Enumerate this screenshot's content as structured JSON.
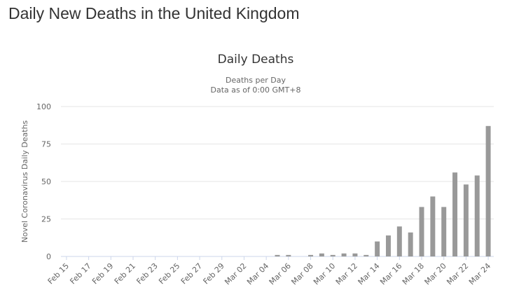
{
  "header": {
    "title": "Daily New Deaths in the United Kingdom"
  },
  "chart_data": {
    "type": "bar",
    "title": "Daily Deaths",
    "subtitle": [
      "Deaths per Day",
      "Data as of 0:00 GMT+8"
    ],
    "y_label": "Novel Coronavirus Daily Deaths",
    "categories": [
      "Feb 15",
      null,
      "Feb 17",
      null,
      "Feb 19",
      null,
      "Feb 21",
      null,
      "Feb 23",
      null,
      "Feb 25",
      null,
      "Feb 27",
      null,
      "Feb 29",
      null,
      "Mar 02",
      null,
      "Mar 04",
      null,
      "Mar 06",
      null,
      "Mar 08",
      null,
      "Mar 10",
      null,
      "Mar 12",
      null,
      "Mar 14",
      null,
      "Mar 16",
      null,
      "Mar 18",
      null,
      "Mar 20",
      null,
      "Mar 22",
      null,
      "Mar 24"
    ],
    "values": [
      0,
      0,
      0,
      0,
      0,
      0,
      0,
      0,
      0,
      0,
      0,
      0,
      0,
      0,
      0,
      0,
      0,
      0,
      0,
      1,
      1,
      0,
      1,
      2,
      1,
      2,
      2,
      1,
      10,
      14,
      20,
      16,
      33,
      40,
      33,
      56,
      48,
      54,
      87
    ],
    "color": "#999999",
    "ylim": [
      0,
      100
    ],
    "yticks": [
      0,
      25,
      50,
      75,
      100
    ],
    "grid": true
  }
}
